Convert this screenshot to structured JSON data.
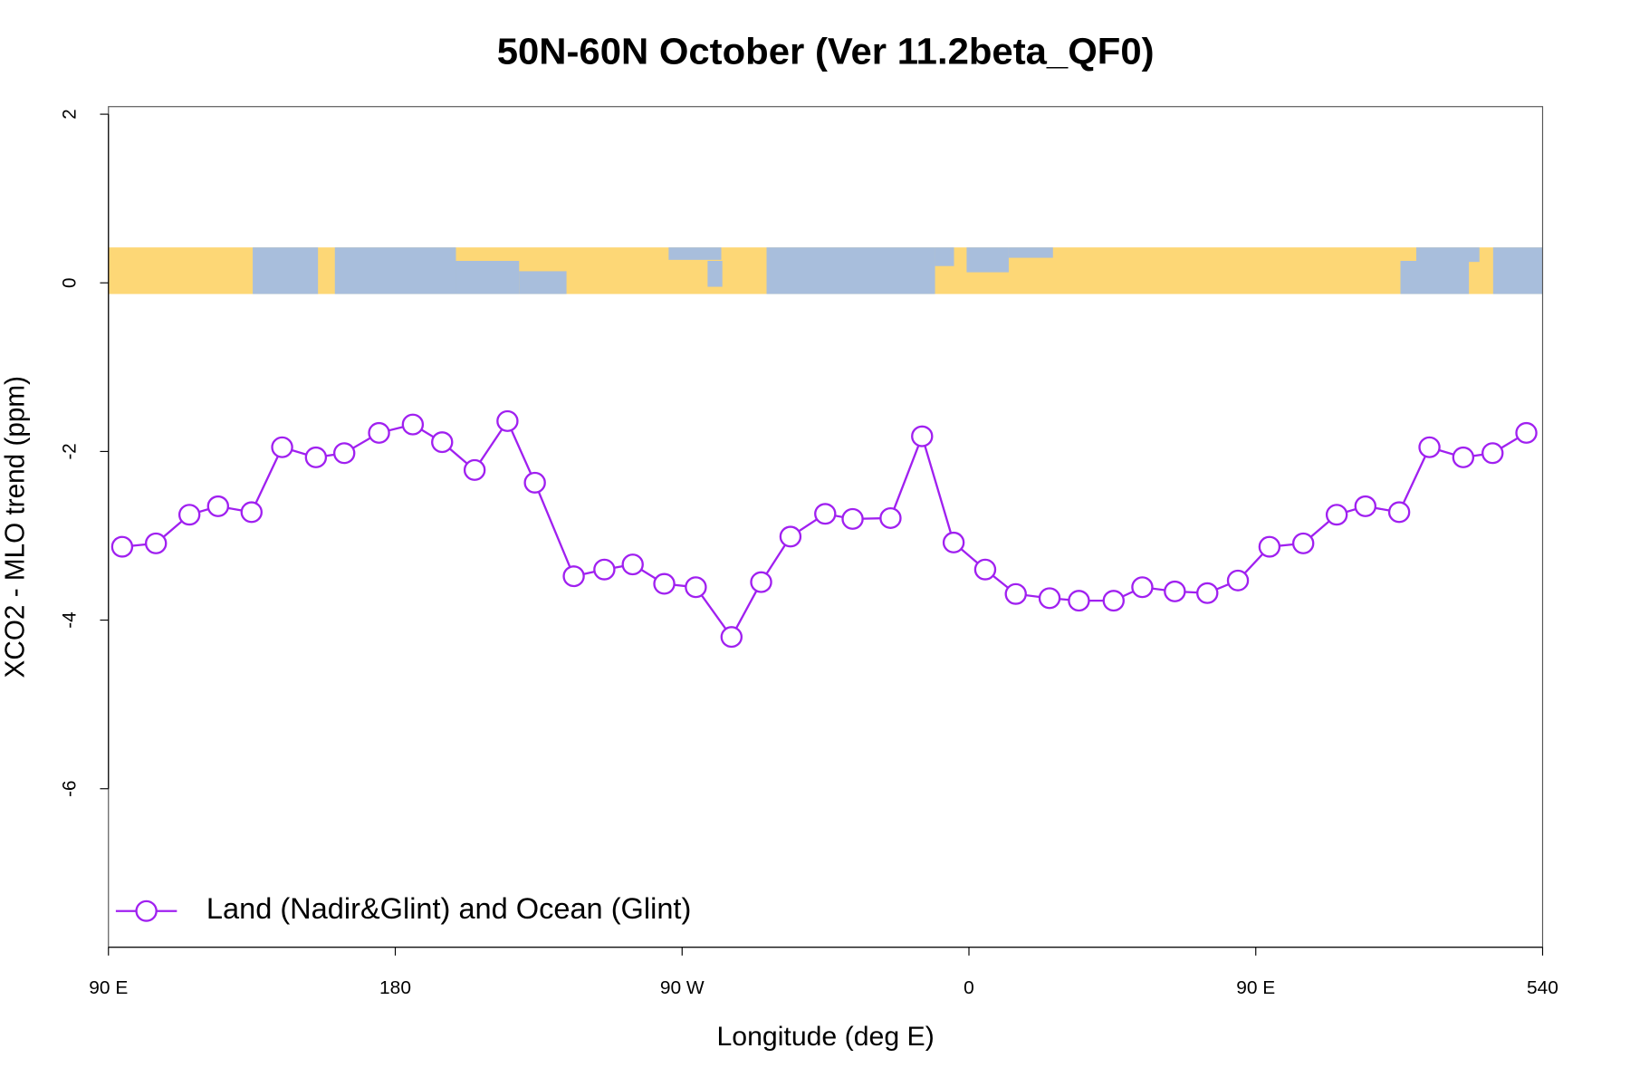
{
  "chart_data": {
    "type": "line",
    "title": "50N-60N October (Ver 11.2beta_QF0)",
    "xlabel": "Longitude (deg E)",
    "ylabel": "XCO2 - MLO trend (ppm)",
    "x": [
      94.3,
      104.9,
      115.4,
      124.4,
      134.9,
      144.5,
      155.1,
      164.0,
      174.9,
      185.5,
      194.7,
      204.9,
      215.2,
      223.8,
      236.0,
      245.6,
      254.5,
      264.4,
      274.3,
      285.5,
      294.8,
      304.0,
      314.9,
      323.5,
      335.4,
      345.3,
      355.2,
      365.1,
      374.7,
      385.3,
      394.5,
      405.4,
      414.4,
      424.6,
      434.8,
      444.4,
      454.3,
      464.9,
      475.4,
      484.4,
      495.0,
      504.5,
      515.1,
      524.3,
      534.9
    ],
    "series": [
      {
        "name": "Land (Nadir&Glint) and Ocean (Glint)",
        "color": "#a020f0",
        "values": [
          -3.13,
          -3.09,
          -2.75,
          -2.65,
          -2.72,
          -1.95,
          -2.07,
          -2.02,
          -1.78,
          -1.68,
          -1.89,
          -2.22,
          -1.64,
          -2.37,
          -3.48,
          -3.4,
          -3.34,
          -3.57,
          -3.61,
          -4.2,
          -3.55,
          -3.01,
          -2.74,
          -2.8,
          -2.79,
          -1.82,
          -3.08,
          -3.4,
          -3.69,
          -3.74,
          -3.77,
          -3.77,
          -3.61,
          -3.66,
          -3.68,
          -3.53,
          -3.13,
          -3.09,
          -2.75,
          -2.65,
          -2.72,
          -1.95,
          -2.07,
          -2.02,
          -1.78
        ]
      }
    ],
    "xlim": [
      90,
      540
    ],
    "xticks": [
      {
        "value": 90,
        "label": "90 E"
      },
      180,
      {
        "value": 270,
        "label": "90 W"
      },
      {
        "value": 360,
        "label": "0"
      },
      {
        "value": 450,
        "label": "90 E"
      },
      540
    ],
    "ylim": [
      -7.88,
      2.09
    ],
    "yticks": [
      -6,
      -4,
      -2,
      0,
      2
    ],
    "legend": "bottomleft"
  }
}
